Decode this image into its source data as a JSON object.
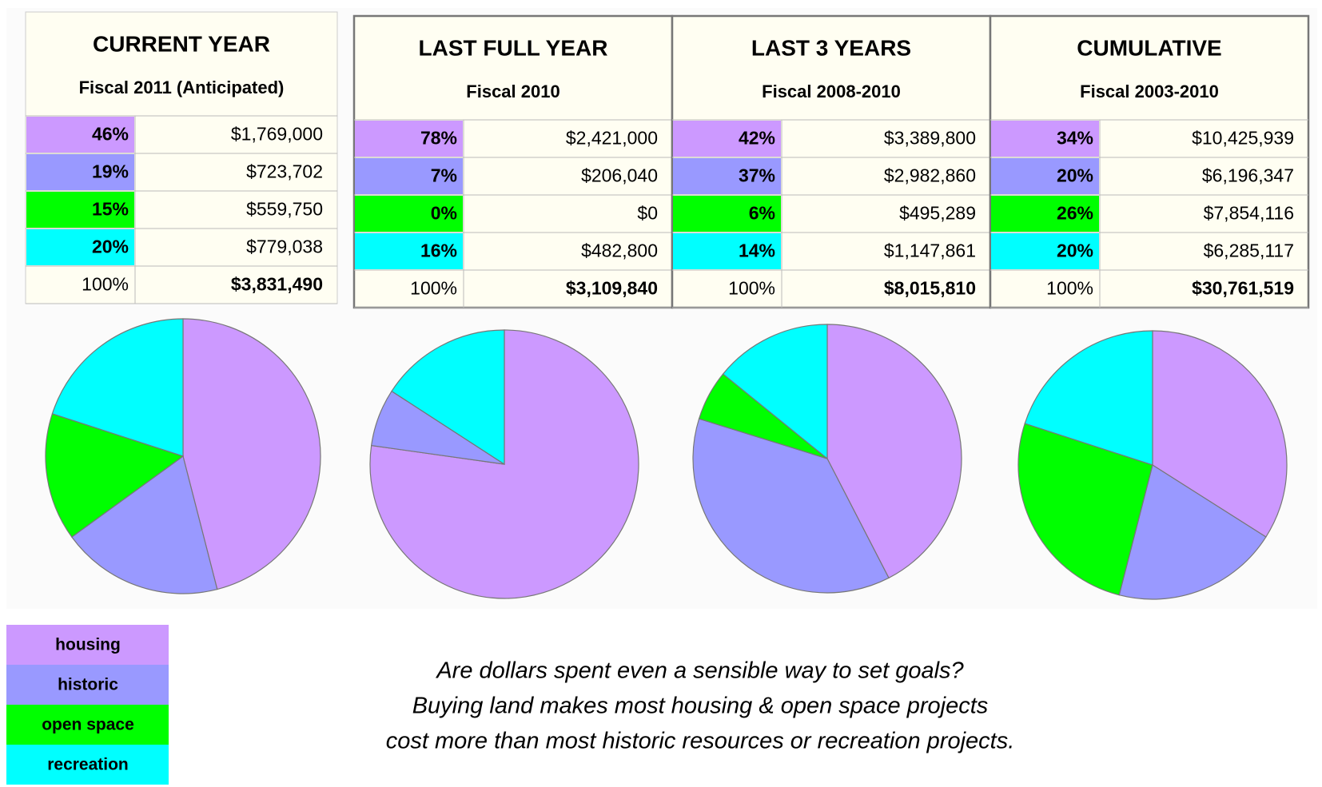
{
  "legend": {
    "categories": [
      "housing",
      "historic",
      "open space",
      "recreation"
    ],
    "colors": [
      "#cc99ff",
      "#9999ff",
      "#00ff00",
      "#00ffff"
    ]
  },
  "chart_data": [
    {
      "type": "pie",
      "title": "CURRENT YEAR",
      "subtitle": "Fiscal 2011 (Anticipated)",
      "values": [
        46,
        19,
        15,
        20
      ],
      "value_labels": [
        "46%",
        "19%",
        "15%",
        "20%"
      ],
      "amounts": [
        "$1,769,000",
        "$723,702",
        "$559,750",
        "$779,038"
      ],
      "total_label": "100%",
      "total": "$3,831,490"
    },
    {
      "type": "pie",
      "title": "LAST FULL YEAR",
      "subtitle": "Fiscal 2010",
      "values": [
        78,
        7,
        0,
        16
      ],
      "value_labels": [
        "78%",
        "7%",
        "0%",
        "16%"
      ],
      "amounts": [
        "$2,421,000",
        "$206,040",
        "$0",
        "$482,800"
      ],
      "total_label": "100%",
      "total": "$3,109,840"
    },
    {
      "type": "pie",
      "title": "LAST 3 YEARS",
      "subtitle": "Fiscal 2008-2010",
      "values": [
        42,
        37,
        6,
        14
      ],
      "value_labels": [
        "42%",
        "37%",
        "6%",
        "14%"
      ],
      "amounts": [
        "$3,389,800",
        "$2,982,860",
        "$495,289",
        "$1,147,861"
      ],
      "total_label": "100%",
      "total": "$8,015,810"
    },
    {
      "type": "pie",
      "title": "CUMULATIVE",
      "subtitle": "Fiscal 2003-2010",
      "values": [
        34,
        20,
        26,
        20
      ],
      "value_labels": [
        "34%",
        "20%",
        "26%",
        "20%"
      ],
      "amounts": [
        "$10,425,939",
        "$6,196,347",
        "$7,854,116",
        "$6,285,117"
      ],
      "total_label": "100%",
      "total": "$30,761,519"
    }
  ],
  "caption": [
    "Are dollars spent even a sensible way to set goals?",
    "Buying land makes most housing & open space projects",
    "cost more than most historic resources or recreation projects."
  ]
}
